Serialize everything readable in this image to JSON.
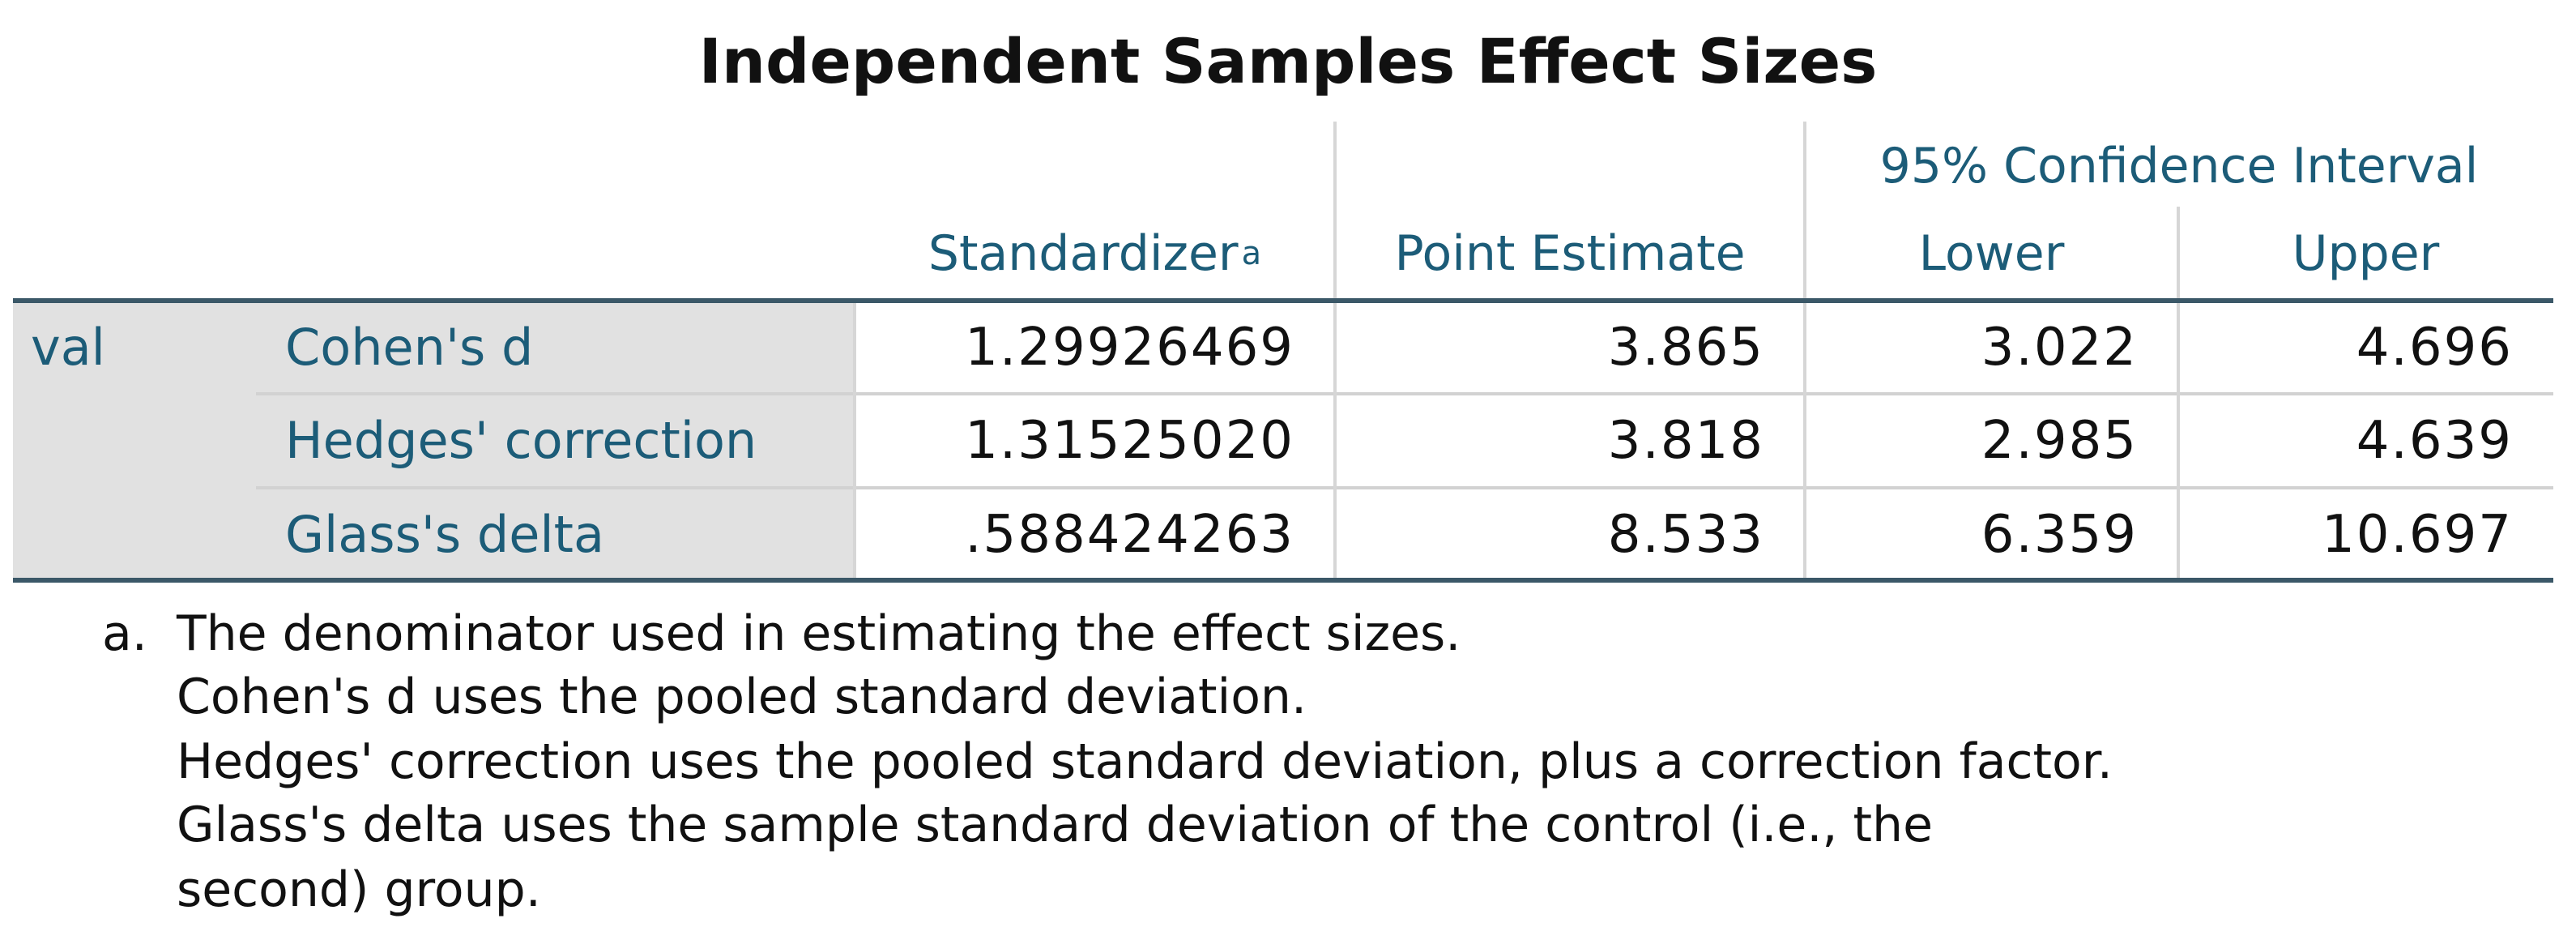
{
  "title": "Independent Samples Effect Sizes",
  "table": {
    "group_header": "95% Confidence Interval",
    "columns": [
      "Standardizer",
      "Point Estimate",
      "Lower",
      "Upper"
    ],
    "standardizer_note_mark": "a",
    "row_group": "val",
    "rows": [
      [
        "Cohen's d",
        "1.29926469",
        "3.865",
        "3.022",
        "4.696"
      ],
      [
        "Hedges' correction",
        "1.31525020",
        "3.818",
        "2.985",
        "4.639"
      ],
      [
        "Glass's delta",
        ".588424263",
        "8.533",
        "6.359",
        "10.697"
      ]
    ]
  },
  "footnote": {
    "marker": "a.",
    "lines": [
      "The denominator used in estimating the effect sizes.",
      "Cohen's d uses the pooled standard deviation.",
      "Hedges' correction uses the pooled standard deviation, plus a correction factor.",
      "Glass's delta uses the sample standard deviation of the control (i.e., the",
      "second) group."
    ]
  }
}
